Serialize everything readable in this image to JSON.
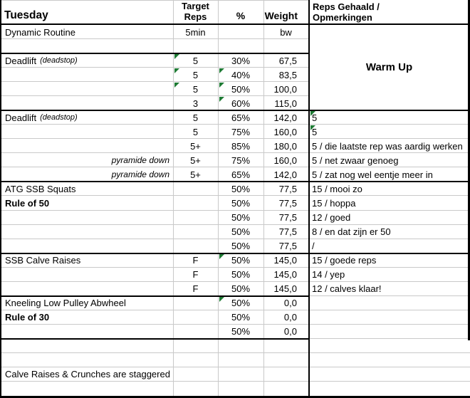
{
  "title": "Tuesday",
  "columns": {
    "target_reps_line1": "Target",
    "target_reps_line2": "Reps",
    "percent": "%",
    "weight": "Weight",
    "result_line1": "Reps Gehaald /",
    "result_line2": "Opmerkingen"
  },
  "warmup_label": "Warm Up",
  "rows": [
    {
      "name": "Dynamic Routine",
      "reps": "5min",
      "pct": "",
      "weight": "bw",
      "result": "",
      "weight_center": true
    },
    {
      "name": "",
      "reps": "",
      "pct": "",
      "weight": "",
      "result": ""
    },
    {
      "name": "Deadlift",
      "name_suffix": "(deadstop)",
      "reps": "5",
      "pct": "30%",
      "weight": "67,5",
      "result": "",
      "flags": [
        "reps"
      ]
    },
    {
      "name": "",
      "reps": "5",
      "pct": "40%",
      "weight": "83,5",
      "result": "",
      "flags": [
        "reps",
        "pct"
      ]
    },
    {
      "name": "",
      "reps": "5",
      "pct": "50%",
      "weight": "100,0",
      "result": "",
      "flags": [
        "reps",
        "pct"
      ]
    },
    {
      "name": "",
      "reps": "3",
      "pct": "60%",
      "weight": "115,0",
      "result": "",
      "flags": [
        "pct"
      ]
    },
    {
      "name": "Deadlift",
      "name_suffix": "(deadstop)",
      "reps": "5",
      "pct": "65%",
      "weight": "142,0",
      "result": "5",
      "flags": [
        "result"
      ]
    },
    {
      "name": "",
      "reps": "5",
      "pct": "75%",
      "weight": "160,0",
      "result": "5",
      "flags": [
        "result"
      ]
    },
    {
      "name": "",
      "reps": "5+",
      "pct": "85%",
      "weight": "180,0",
      "result": "5 / die laatste rep was aardig werken"
    },
    {
      "name": "pyramide down",
      "name_style": "note",
      "reps": "5+",
      "pct": "75%",
      "weight": "160,0",
      "result": "5 / net zwaar genoeg"
    },
    {
      "name": "pyramide down",
      "name_style": "note",
      "reps": "5+",
      "pct": "65%",
      "weight": "142,0",
      "result": "5 / zat nog wel eentje meer in"
    },
    {
      "name": "ATG SSB Squats",
      "reps": "",
      "pct": "50%",
      "weight": "77,5",
      "result": "15 / mooi zo"
    },
    {
      "name": "Rule of 50",
      "name_style": "bold",
      "reps": "",
      "pct": "50%",
      "weight": "77,5",
      "result": "15 / hoppa"
    },
    {
      "name": "",
      "reps": "",
      "pct": "50%",
      "weight": "77,5",
      "result": "12 / goed"
    },
    {
      "name": "",
      "reps": "",
      "pct": "50%",
      "weight": "77,5",
      "result": "8 / en dat zijn er 50"
    },
    {
      "name": "",
      "reps": "",
      "pct": "50%",
      "weight": "77,5",
      "result": "/"
    },
    {
      "name": "SSB Calve Raises",
      "reps": "F",
      "pct": "50%",
      "weight": "145,0",
      "result": "15 / goede reps",
      "flags": [
        "pct"
      ]
    },
    {
      "name": "",
      "reps": "F",
      "pct": "50%",
      "weight": "145,0",
      "result": "14 / yep"
    },
    {
      "name": "",
      "reps": "F",
      "pct": "50%",
      "weight": "145,0",
      "result": "12 / calves klaar!"
    },
    {
      "name": "Kneeling Low Pulley Abwheel",
      "reps": "",
      "pct": "50%",
      "weight": "0,0",
      "result": "",
      "flags": [
        "pct"
      ]
    },
    {
      "name": "Rule of 30",
      "name_style": "bold",
      "reps": "",
      "pct": "50%",
      "weight": "0,0",
      "result": ""
    },
    {
      "name": "",
      "reps": "",
      "pct": "50%",
      "weight": "0,0",
      "result": ""
    },
    {
      "name": "",
      "reps": "",
      "pct": "",
      "weight": "",
      "result": ""
    },
    {
      "name": "",
      "reps": "",
      "pct": "",
      "weight": "",
      "result": ""
    },
    {
      "name": "Calve Raises & Crunches are staggered",
      "reps": "",
      "pct": "",
      "weight": "",
      "result": ""
    },
    {
      "name": "",
      "reps": "",
      "pct": "",
      "weight": "",
      "result": ""
    }
  ],
  "colors": {
    "grid": "#c9c9c9",
    "border": "#000000",
    "flag_green": "#1e7b34"
  }
}
